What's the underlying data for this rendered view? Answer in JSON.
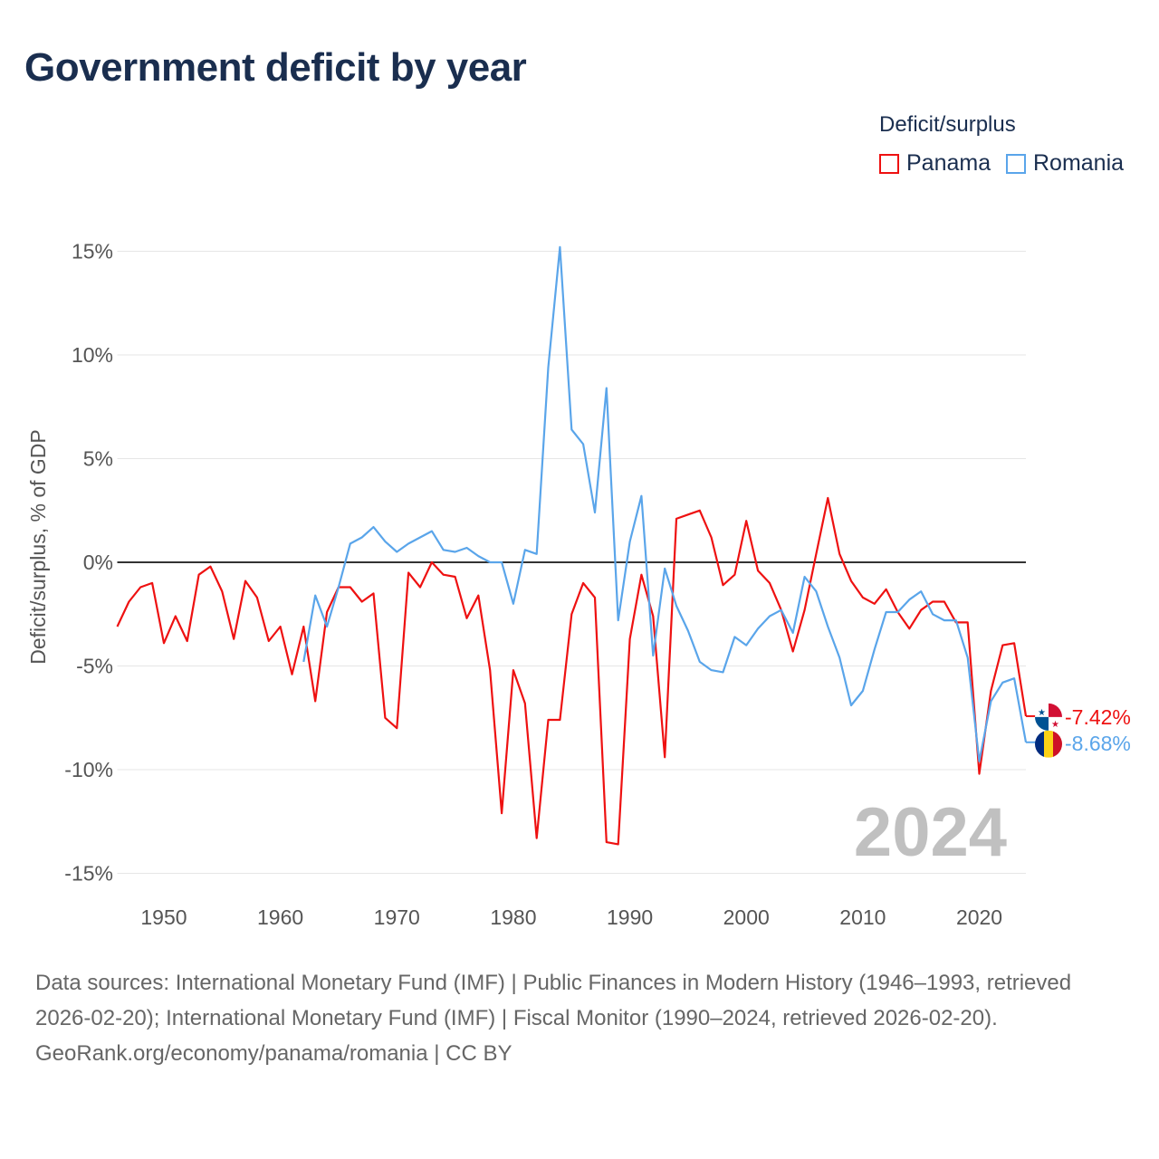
{
  "title": "Government deficit by year",
  "legend": {
    "title": "Deficit/surplus",
    "items": [
      {
        "name": "Panama",
        "color": "#ee1111"
      },
      {
        "name": "Romania",
        "color": "#5aa5ea"
      }
    ]
  },
  "footer": {
    "sources": "Data sources: International Monetary Fund (IMF) | Public Finances in Modern History (1946–1993, retrieved 2026-02-20); International Monetary Fund (IMF) | Fiscal Monitor (1990–2024, retrieved 2026-02-20).",
    "link": "GeoRank.org/economy/panama/romania | CC BY"
  },
  "chart_data": {
    "type": "line",
    "title": "Government deficit by year",
    "ylabel": "Deficit/surplus, % of GDP",
    "xlabel": "",
    "year_label": "2024",
    "ylim": [
      -15,
      15
    ],
    "xlim": [
      1946,
      2024
    ],
    "yticks": [
      15,
      10,
      5,
      0,
      -5,
      -10,
      -15
    ],
    "ytick_labels": [
      "15%",
      "10%",
      "5%",
      "0%",
      "-5%",
      "-10%",
      "-15%"
    ],
    "xticks": [
      1950,
      1960,
      1970,
      1980,
      1990,
      2000,
      2010,
      2020
    ],
    "xtick_labels": [
      "1950",
      "1960",
      "1970",
      "1980",
      "1990",
      "2000",
      "2010",
      "2020"
    ],
    "series": [
      {
        "name": "Panama",
        "color": "#ee1111",
        "start": 1946,
        "end_label": "-7.42%",
        "values": [
          -3.1,
          -1.9,
          -1.2,
          -1.0,
          -3.9,
          -2.6,
          -3.8,
          -0.6,
          -0.2,
          -1.4,
          -3.7,
          -0.9,
          -1.7,
          -3.8,
          -3.1,
          -5.4,
          -3.1,
          -6.7,
          -2.4,
          -1.2,
          -1.2,
          -1.9,
          -1.5,
          -7.5,
          -8.0,
          -0.5,
          -1.2,
          0.0,
          -0.6,
          -0.7,
          -2.7,
          -1.6,
          -5.2,
          -12.1,
          -5.2,
          -6.8,
          -13.3,
          -7.6,
          -7.6,
          -2.5,
          -1.0,
          -1.7,
          -13.5,
          -13.6,
          -3.7,
          -0.6,
          -2.6,
          -9.4,
          2.1,
          2.3,
          2.5,
          1.2,
          -1.1,
          -0.6,
          2.0,
          -0.4,
          -1.0,
          -2.3,
          -4.3,
          -2.3,
          0.4,
          3.1,
          0.4,
          -0.9,
          -1.7,
          -2.0,
          -1.3,
          -2.4,
          -3.2,
          -2.3,
          -1.9,
          -1.9,
          -2.9,
          -2.9,
          -10.2,
          -6.2,
          -4.0,
          -3.9,
          -7.42
        ]
      },
      {
        "name": "Romania",
        "color": "#5aa5ea",
        "start": 1962,
        "end_label": "-8.68%",
        "values": [
          -4.8,
          -1.6,
          -3.1,
          -1.2,
          0.9,
          1.2,
          1.7,
          1.0,
          0.5,
          0.9,
          1.2,
          1.5,
          0.6,
          0.5,
          0.7,
          0.3,
          0.0,
          0.0,
          -2.0,
          0.6,
          0.4,
          9.4,
          15.2,
          6.4,
          5.7,
          2.4,
          8.4,
          -2.8,
          1.0,
          3.2,
          -4.5,
          -0.3,
          -2.1,
          -3.3,
          -4.8,
          -5.2,
          -5.3,
          -3.6,
          -4.0,
          -3.2,
          -2.6,
          -2.3,
          -3.4,
          -0.7,
          -1.4,
          -3.1,
          -4.6,
          -6.9,
          -6.2,
          -4.2,
          -2.4,
          -2.4,
          -1.8,
          -1.4,
          -2.5,
          -2.8,
          -2.8,
          -4.6,
          -9.6,
          -6.7,
          -5.8,
          -5.6,
          -8.68
        ]
      }
    ]
  }
}
